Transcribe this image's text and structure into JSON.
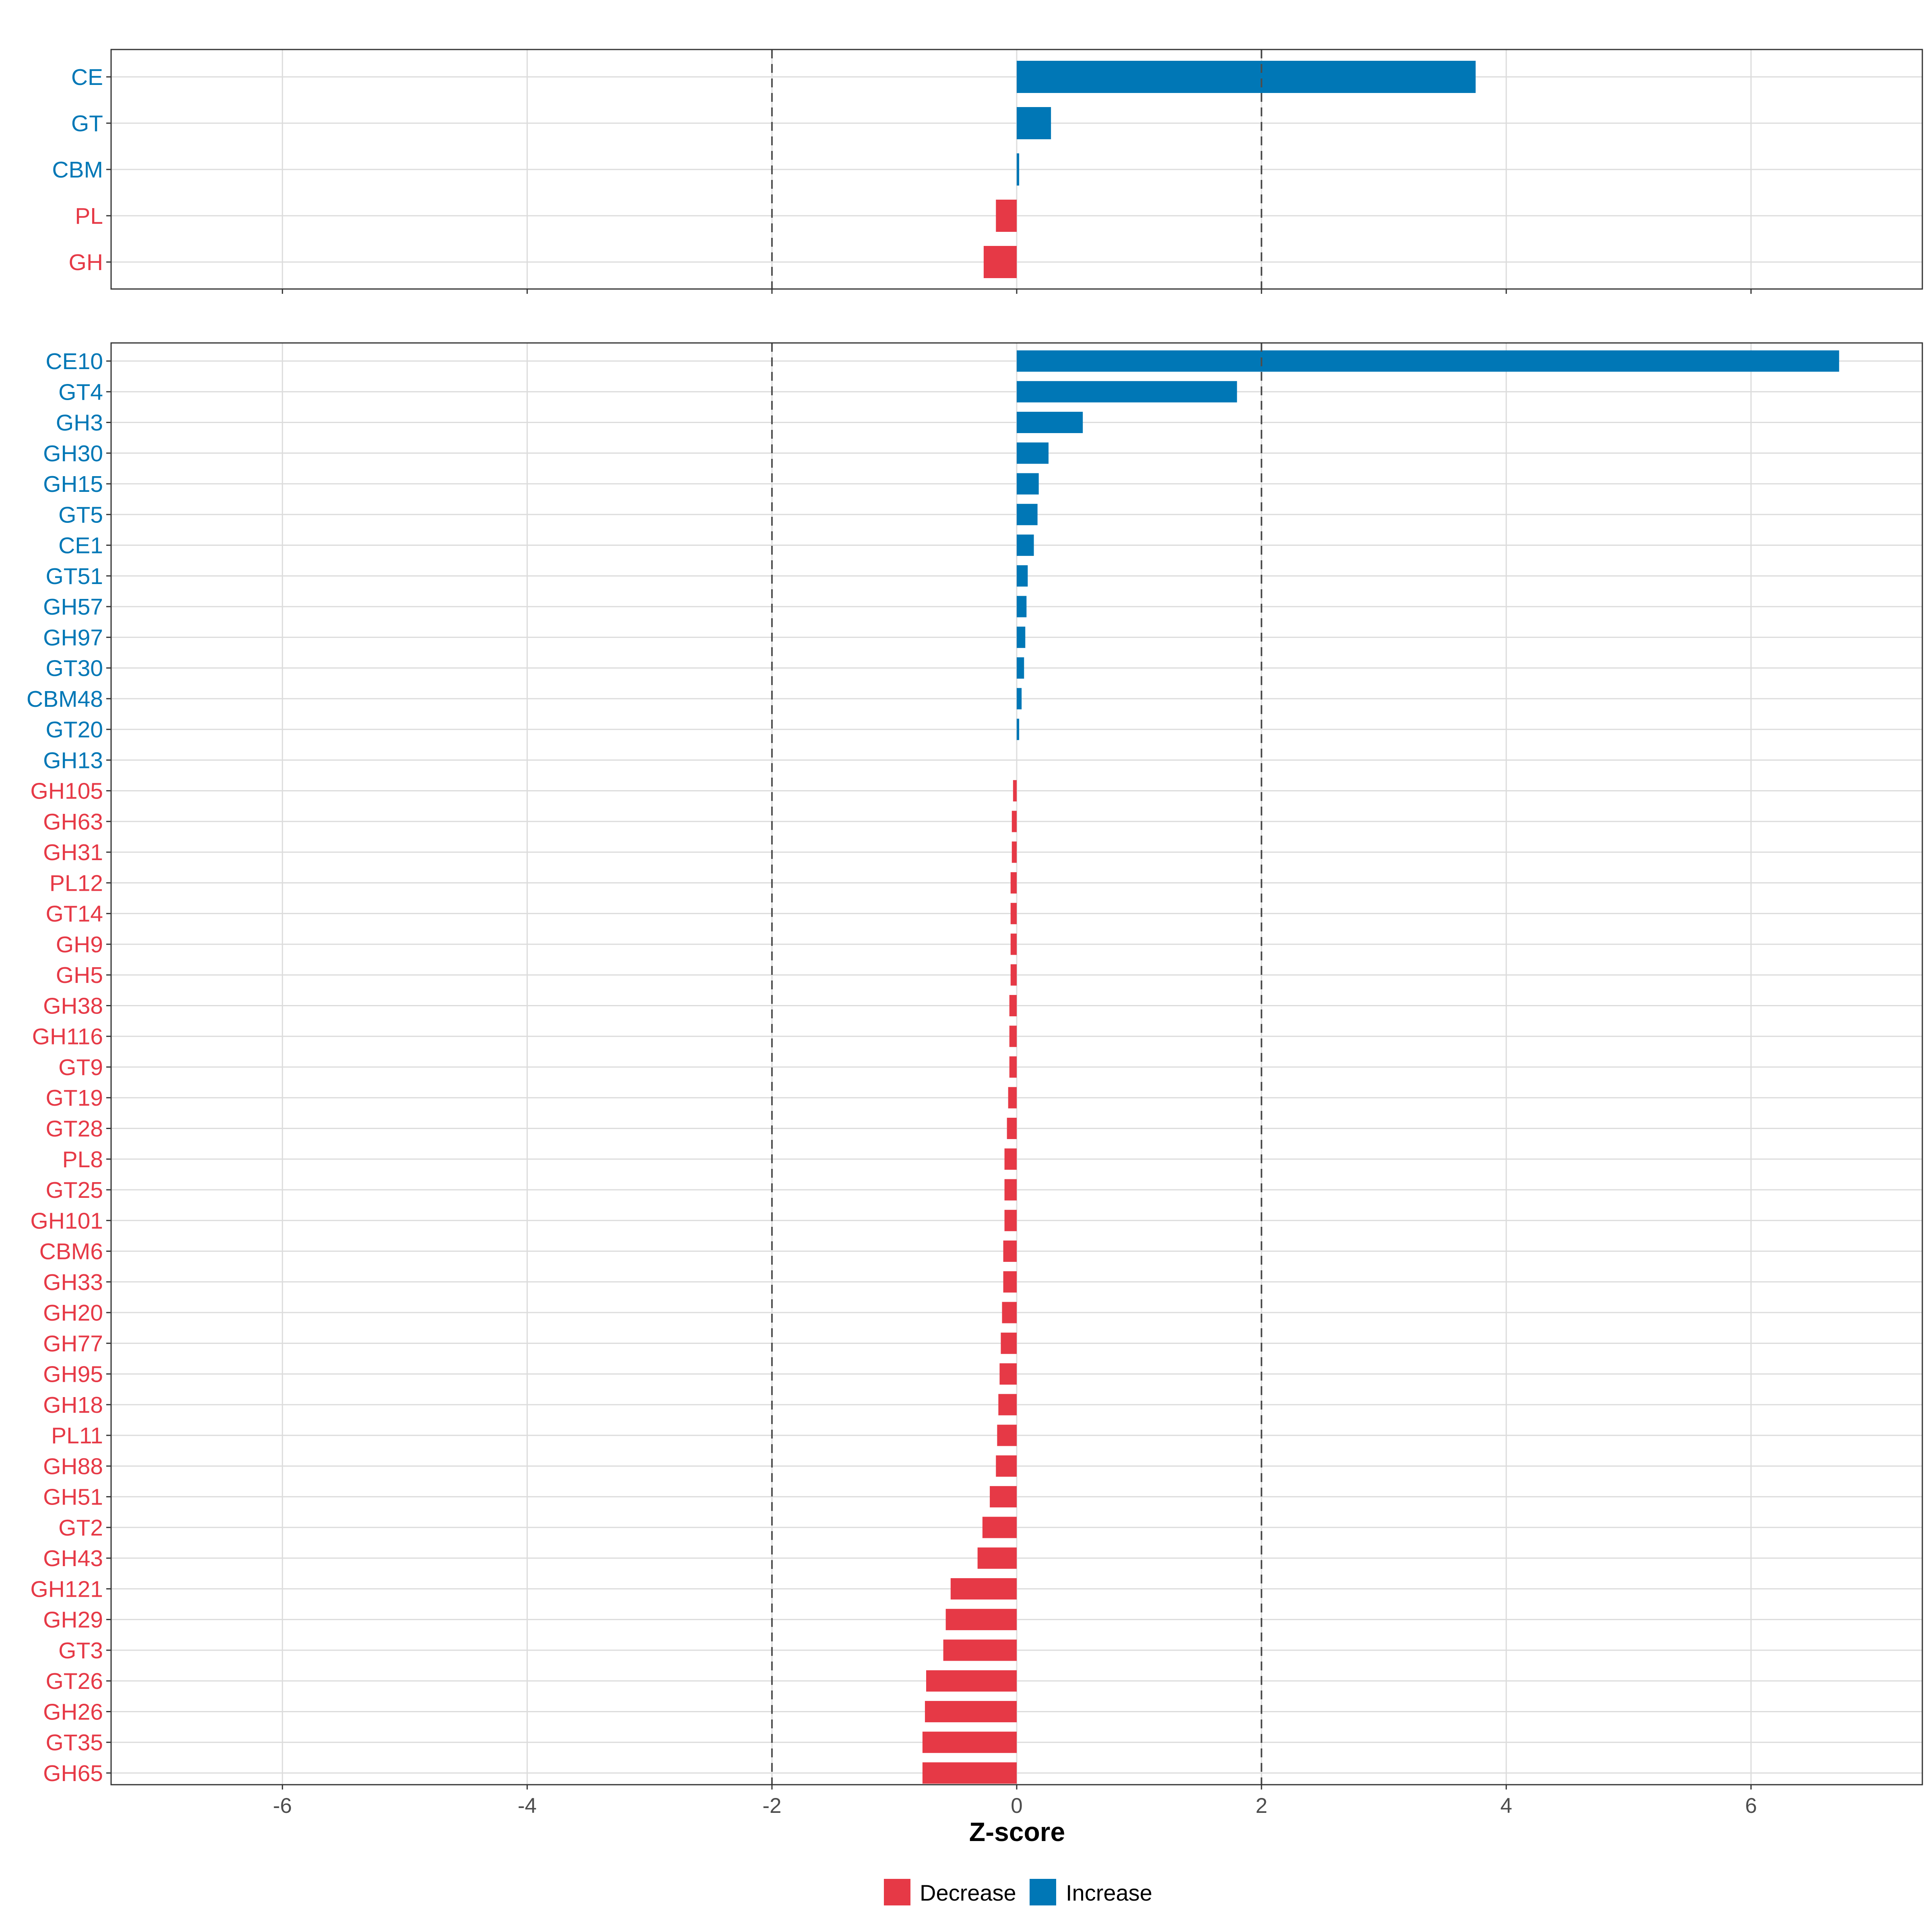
{
  "chart_data": {
    "type": "bar",
    "orientation": "horizontal",
    "xlabel": "Z-score",
    "xlim": [
      -7.4,
      7.4
    ],
    "xticks": [
      -6,
      -4,
      -2,
      0,
      2,
      4,
      6
    ],
    "reference_lines": [
      -2,
      2
    ],
    "colors": {
      "Decrease": "#e63946",
      "Increase": "#0077b6"
    },
    "legend": [
      {
        "name": "Decrease",
        "label": "Decrease"
      },
      {
        "name": "Increase",
        "label": "Increase"
      }
    ],
    "panels": [
      {
        "name": "family",
        "categories": [
          "CE",
          "GT",
          "CBM",
          "PL",
          "GH"
        ],
        "values": [
          3.75,
          0.28,
          0.02,
          -0.17,
          -0.27
        ]
      },
      {
        "name": "subfamily",
        "categories": [
          "CE10",
          "GT4",
          "GH3",
          "GH30",
          "GH15",
          "GT5",
          "CE1",
          "GT51",
          "GH57",
          "GH97",
          "GT30",
          "CBM48",
          "GT20",
          "GH13",
          "GH105",
          "GH63",
          "GH31",
          "PL12",
          "GT14",
          "GH9",
          "GH5",
          "GH38",
          "GH116",
          "GT9",
          "GT19",
          "GT28",
          "PL8",
          "GT25",
          "GH101",
          "CBM6",
          "GH33",
          "GH20",
          "GH77",
          "GH95",
          "GH18",
          "PL11",
          "GH88",
          "GH51",
          "GT2",
          "GH43",
          "GH121",
          "GH29",
          "GT3",
          "GT26",
          "GH26",
          "GT35",
          "GH65"
        ],
        "values": [
          6.72,
          1.8,
          0.54,
          0.26,
          0.18,
          0.17,
          0.14,
          0.09,
          0.08,
          0.07,
          0.06,
          0.04,
          0.02,
          0.0,
          -0.03,
          -0.04,
          -0.04,
          -0.05,
          -0.05,
          -0.05,
          -0.05,
          -0.06,
          -0.06,
          -0.06,
          -0.07,
          -0.08,
          -0.1,
          -0.1,
          -0.1,
          -0.11,
          -0.11,
          -0.12,
          -0.13,
          -0.14,
          -0.15,
          -0.16,
          -0.17,
          -0.22,
          -0.28,
          -0.32,
          -0.54,
          -0.58,
          -0.6,
          -0.74,
          -0.75,
          -0.77,
          -0.77
        ]
      }
    ]
  }
}
